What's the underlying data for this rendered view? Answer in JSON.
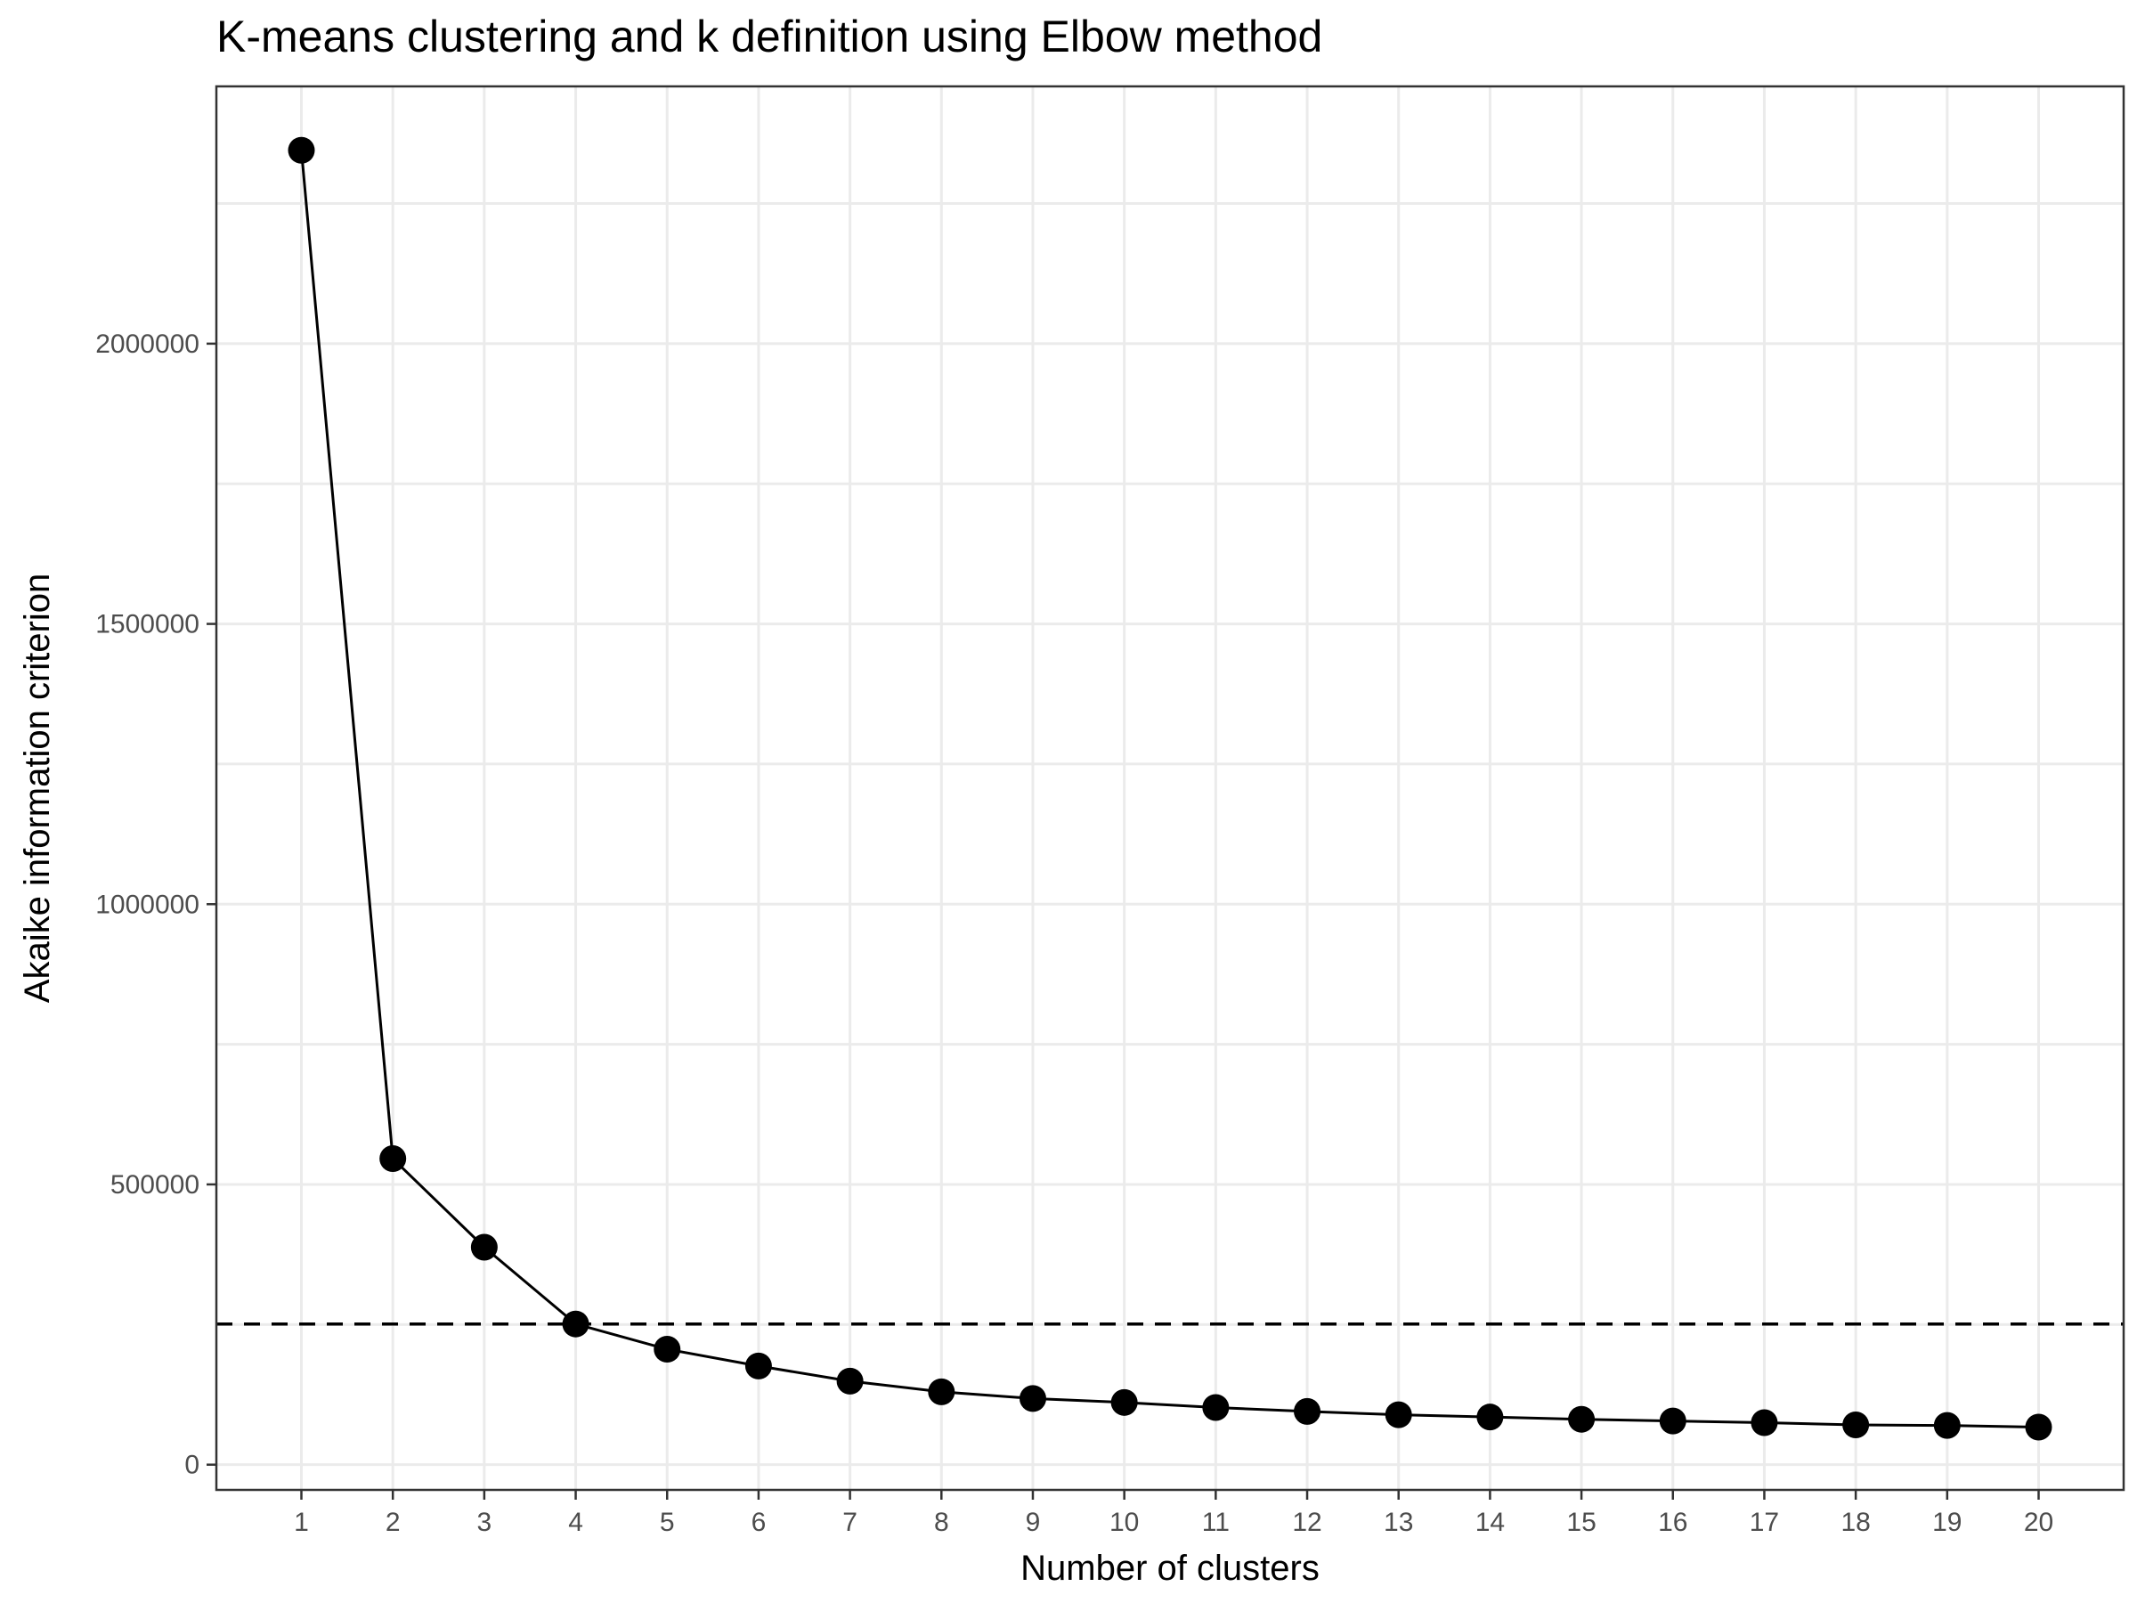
{
  "chart_data": {
    "type": "line",
    "title": "K-means clustering and k definition using Elbow method",
    "xlabel": "Number of clusters",
    "ylabel": "Akaike information criterion",
    "x": [
      1,
      2,
      3,
      4,
      5,
      6,
      7,
      8,
      9,
      10,
      11,
      12,
      13,
      14,
      15,
      16,
      17,
      18,
      19,
      20
    ],
    "x_tick_labels": [
      "1",
      "2",
      "3",
      "4",
      "5",
      "6",
      "7",
      "8",
      "9",
      "10",
      "11",
      "12",
      "13",
      "14",
      "15",
      "16",
      "17",
      "18",
      "19",
      "20"
    ],
    "series": [
      {
        "values": [
          2345000,
          546000,
          388000,
          251000,
          206000,
          176000,
          149000,
          130000,
          118000,
          111000,
          102000,
          95000,
          89000,
          85000,
          81000,
          78000,
          75000,
          71000,
          70000,
          67000
        ]
      }
    ],
    "y_ticks": [
      0,
      500000,
      1000000,
      1500000,
      2000000
    ],
    "y_tick_labels": [
      "0",
      "500000",
      "1000000",
      "1500000",
      "2000000"
    ],
    "reference_line": {
      "orientation": "horizontal",
      "y": 251000,
      "style": "dashed"
    },
    "xlim": [
      0.07,
      20.93
    ],
    "ylim": [
      -45000,
      2459000
    ],
    "grid": true,
    "legend": "none",
    "colors": {
      "series": "#000000",
      "grid": "#ebebeb",
      "border": "#333333",
      "tick_text": "#4d4d4d"
    }
  }
}
